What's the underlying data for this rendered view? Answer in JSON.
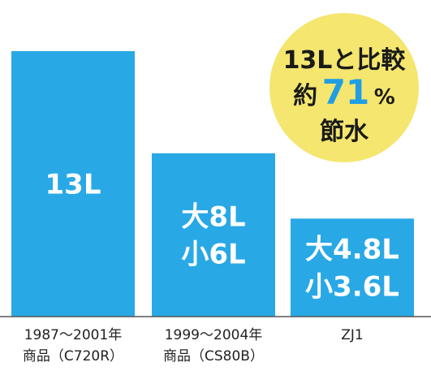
{
  "chart_data": {
    "type": "bar",
    "categories": [
      [
        "1987〜2001年",
        "商品（C720R）"
      ],
      [
        "1999〜2004年",
        "商品（CS80B）"
      ],
      [
        "ZJ1"
      ]
    ],
    "values": [
      13,
      8,
      4.8
    ],
    "bar_labels": [
      [
        "13L"
      ],
      [
        "大8L",
        "小6L"
      ],
      [
        "大4.8L",
        "小3.6L"
      ]
    ],
    "ylim": [
      0,
      13
    ],
    "unit": "L",
    "title": "",
    "xlabel": "",
    "ylabel": "",
    "grid": false,
    "legend": "none",
    "colors": {
      "bar": "#29a8e6",
      "badge": "#f4e66e",
      "highlight": "#1f9ee3",
      "text_dark": "#1a1a1a",
      "axis": "#555555"
    },
    "annotation": {
      "line1": "13Lと比較",
      "line2_pre": "約",
      "line2_num": "71",
      "line2_post": "%",
      "line3": "節水"
    }
  }
}
